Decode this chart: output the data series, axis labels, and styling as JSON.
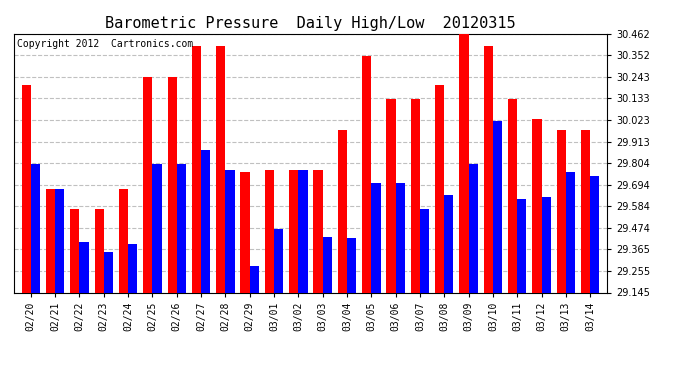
{
  "title": "Barometric Pressure  Daily High/Low  20120315",
  "copyright": "Copyright 2012  Cartronics.com",
  "dates": [
    "02/20",
    "02/21",
    "02/22",
    "02/23",
    "02/24",
    "02/25",
    "02/26",
    "02/27",
    "02/28",
    "02/29",
    "03/01",
    "03/02",
    "03/03",
    "03/04",
    "03/05",
    "03/06",
    "03/07",
    "03/08",
    "03/09",
    "03/10",
    "03/11",
    "03/12",
    "03/13",
    "03/14"
  ],
  "highs": [
    30.2,
    29.67,
    29.57,
    29.57,
    29.67,
    30.24,
    30.24,
    30.4,
    30.4,
    29.76,
    29.77,
    29.77,
    29.77,
    29.97,
    30.35,
    30.13,
    30.13,
    30.2,
    30.46,
    30.4,
    30.13,
    30.03,
    29.97,
    29.97
  ],
  "lows": [
    29.8,
    29.67,
    29.4,
    29.35,
    29.39,
    29.8,
    29.8,
    29.87,
    29.77,
    29.28,
    29.47,
    29.77,
    29.43,
    29.42,
    29.7,
    29.7,
    29.57,
    29.64,
    29.8,
    30.02,
    29.62,
    29.63,
    29.76,
    29.74
  ],
  "high_color": "#ff0000",
  "low_color": "#0000ff",
  "ylim_min": 29.145,
  "ylim_max": 30.462,
  "yticks": [
    29.145,
    29.255,
    29.365,
    29.474,
    29.584,
    29.694,
    29.804,
    29.913,
    30.023,
    30.133,
    30.243,
    30.352,
    30.462
  ],
  "background_color": "#ffffff",
  "grid_color": "#c0c0c0",
  "title_fontsize": 11,
  "copyright_fontsize": 7,
  "bar_width": 0.38
}
